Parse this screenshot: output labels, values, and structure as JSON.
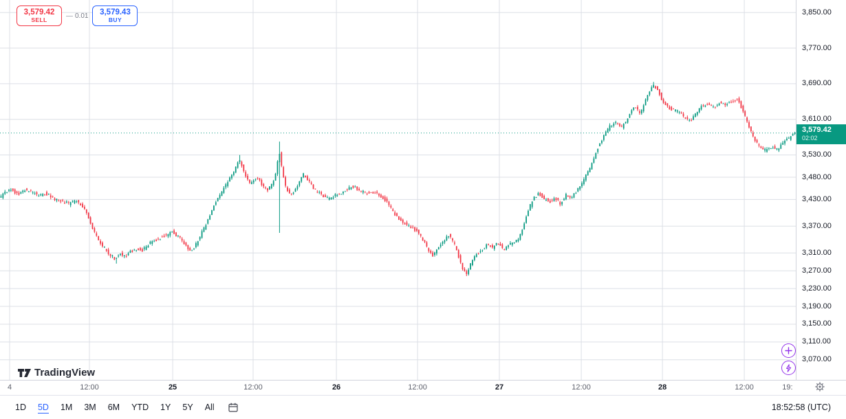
{
  "order_panel": {
    "sell": {
      "price": "3,579.42",
      "label": "SELL"
    },
    "spread": "0.01",
    "buy": {
      "price": "3,579.43",
      "label": "BUY"
    }
  },
  "current_price": {
    "value": 3579.42,
    "label": "3,579.42",
    "countdown": "02:02"
  },
  "logo": {
    "text": "TradingView"
  },
  "price_axis": {
    "labels": [
      {
        "label": "3,850.00",
        "value": 3850
      },
      {
        "label": "3,770.00",
        "value": 3770
      },
      {
        "label": "3,690.00",
        "value": 3690
      },
      {
        "label": "3,610.00",
        "value": 3610
      },
      {
        "label": "3,530.00",
        "value": 3530
      },
      {
        "label": "3,480.00",
        "value": 3480
      },
      {
        "label": "3,430.00",
        "value": 3430
      },
      {
        "label": "3,370.00",
        "value": 3370
      },
      {
        "label": "3,310.00",
        "value": 3310
      },
      {
        "label": "3,270.00",
        "value": 3270
      },
      {
        "label": "3,230.00",
        "value": 3230
      },
      {
        "label": "3,190.00",
        "value": 3190
      },
      {
        "label": "3,150.00",
        "value": 3150
      },
      {
        "label": "3,110.00",
        "value": 3110
      },
      {
        "label": "3,070.00",
        "value": 3070
      }
    ]
  },
  "time_axis": {
    "ticks": [
      {
        "label": "4",
        "t": 0.0121,
        "bold": false,
        "grid": true
      },
      {
        "label": "12:00",
        "t": 0.1124,
        "bold": false,
        "grid": true
      },
      {
        "label": "25",
        "t": 0.217,
        "bold": true,
        "grid": true
      },
      {
        "label": "12:00",
        "t": 0.3181,
        "bold": false,
        "grid": true
      },
      {
        "label": "26",
        "t": 0.4227,
        "bold": true,
        "grid": true
      },
      {
        "label": "12:00",
        "t": 0.5247,
        "bold": false,
        "grid": true
      },
      {
        "label": "27",
        "t": 0.6275,
        "bold": true,
        "grid": true
      },
      {
        "label": "12:00",
        "t": 0.7304,
        "bold": false,
        "grid": true
      },
      {
        "label": "28",
        "t": 0.8324,
        "bold": true,
        "grid": true
      },
      {
        "label": "12:00",
        "t": 0.9353,
        "bold": false,
        "grid": true
      },
      {
        "label": "19:",
        "t": 0.9896,
        "bold": false,
        "grid": false
      }
    ]
  },
  "toolbar": {
    "ranges": [
      {
        "label": "1D",
        "active": false
      },
      {
        "label": "5D",
        "active": true
      },
      {
        "label": "1M",
        "active": false
      },
      {
        "label": "3M",
        "active": false
      },
      {
        "label": "6M",
        "active": false
      },
      {
        "label": "YTD",
        "active": false
      },
      {
        "label": "1Y",
        "active": false
      },
      {
        "label": "5Y",
        "active": false
      },
      {
        "label": "All",
        "active": false
      }
    ],
    "clock": "18:52:58 (UTC)"
  },
  "icons": {
    "side_buttons": [
      "plus-circle-icon",
      "lightning-circle-icon"
    ],
    "axis_corner": "gear-icon",
    "toolbar": "calendar-go-to-date-icon"
  },
  "colors": {
    "up": "#089981",
    "down": "#f23645",
    "buy_blue": "#2962ff",
    "sell_red": "#f23645",
    "grid": "#dcdfe6",
    "axis_text": "#131722",
    "muted_text": "#787b86",
    "accent_purple": "#9333ea",
    "badge_bg": "#089981"
  },
  "chart_data": {
    "type": "candlestick",
    "timeframe_view": "5D",
    "last_price": 3579.42,
    "y_range": [
      3025,
      3878
    ],
    "num_candles": 400,
    "x_axis_labels": [
      "4",
      "12:00",
      "25",
      "12:00",
      "26",
      "12:00",
      "27",
      "12:00",
      "28",
      "12:00",
      "19:"
    ],
    "y_axis_labels": [
      "3,850.00",
      "3,770.00",
      "3,690.00",
      "3,610.00",
      "3,530.00",
      "3,480.00",
      "3,430.00",
      "3,370.00",
      "3,310.00",
      "3,270.00",
      "3,230.00",
      "3,190.00",
      "3,150.00",
      "3,110.00",
      "3,070.00"
    ],
    "colors": {
      "up": "#089981",
      "down": "#f23645"
    },
    "price_path": [
      [
        0.0,
        3432
      ],
      [
        0.008,
        3446
      ],
      [
        0.016,
        3452
      ],
      [
        0.024,
        3440
      ],
      [
        0.032,
        3452
      ],
      [
        0.04,
        3448
      ],
      [
        0.05,
        3438
      ],
      [
        0.058,
        3445
      ],
      [
        0.068,
        3432
      ],
      [
        0.078,
        3428
      ],
      [
        0.088,
        3420
      ],
      [
        0.096,
        3428
      ],
      [
        0.104,
        3418
      ],
      [
        0.11,
        3400
      ],
      [
        0.116,
        3372
      ],
      [
        0.122,
        3348
      ],
      [
        0.128,
        3332
      ],
      [
        0.134,
        3316
      ],
      [
        0.14,
        3305
      ],
      [
        0.146,
        3296
      ],
      [
        0.152,
        3310
      ],
      [
        0.158,
        3300
      ],
      [
        0.164,
        3312
      ],
      [
        0.172,
        3320
      ],
      [
        0.18,
        3316
      ],
      [
        0.188,
        3330
      ],
      [
        0.196,
        3338
      ],
      [
        0.204,
        3345
      ],
      [
        0.212,
        3352
      ],
      [
        0.218,
        3358
      ],
      [
        0.224,
        3348
      ],
      [
        0.23,
        3338
      ],
      [
        0.236,
        3322
      ],
      [
        0.242,
        3315
      ],
      [
        0.248,
        3330
      ],
      [
        0.254,
        3352
      ],
      [
        0.26,
        3375
      ],
      [
        0.267,
        3405
      ],
      [
        0.274,
        3432
      ],
      [
        0.281,
        3450
      ],
      [
        0.288,
        3472
      ],
      [
        0.295,
        3492
      ],
      [
        0.302,
        3520
      ],
      [
        0.309,
        3488
      ],
      [
        0.316,
        3462
      ],
      [
        0.323,
        3480
      ],
      [
        0.33,
        3465
      ],
      [
        0.337,
        3448
      ],
      [
        0.344,
        3468
      ],
      [
        0.349,
        3500
      ],
      [
        0.352,
        3540
      ],
      [
        0.356,
        3492
      ],
      [
        0.361,
        3452
      ],
      [
        0.368,
        3442
      ],
      [
        0.375,
        3462
      ],
      [
        0.382,
        3488
      ],
      [
        0.389,
        3472
      ],
      [
        0.396,
        3452
      ],
      [
        0.404,
        3444
      ],
      [
        0.412,
        3432
      ],
      [
        0.42,
        3436
      ],
      [
        0.428,
        3443
      ],
      [
        0.436,
        3452
      ],
      [
        0.444,
        3460
      ],
      [
        0.452,
        3452
      ],
      [
        0.46,
        3444
      ],
      [
        0.468,
        3448
      ],
      [
        0.476,
        3442
      ],
      [
        0.484,
        3432
      ],
      [
        0.492,
        3410
      ],
      [
        0.5,
        3392
      ],
      [
        0.508,
        3378
      ],
      [
        0.516,
        3368
      ],
      [
        0.525,
        3360
      ],
      [
        0.532,
        3342
      ],
      [
        0.538,
        3322
      ],
      [
        0.545,
        3305
      ],
      [
        0.552,
        3320
      ],
      [
        0.558,
        3338
      ],
      [
        0.565,
        3350
      ],
      [
        0.572,
        3330
      ],
      [
        0.578,
        3300
      ],
      [
        0.583,
        3272
      ],
      [
        0.588,
        3265
      ],
      [
        0.594,
        3290
      ],
      [
        0.6,
        3308
      ],
      [
        0.607,
        3318
      ],
      [
        0.614,
        3330
      ],
      [
        0.62,
        3322
      ],
      [
        0.627,
        3332
      ],
      [
        0.634,
        3318
      ],
      [
        0.64,
        3328
      ],
      [
        0.646,
        3335
      ],
      [
        0.652,
        3340
      ],
      [
        0.658,
        3365
      ],
      [
        0.664,
        3400
      ],
      [
        0.67,
        3428
      ],
      [
        0.678,
        3445
      ],
      [
        0.684,
        3432
      ],
      [
        0.692,
        3425
      ],
      [
        0.7,
        3432
      ],
      [
        0.706,
        3420
      ],
      [
        0.712,
        3440
      ],
      [
        0.718,
        3432
      ],
      [
        0.724,
        3445
      ],
      [
        0.73,
        3458
      ],
      [
        0.737,
        3482
      ],
      [
        0.744,
        3505
      ],
      [
        0.752,
        3545
      ],
      [
        0.76,
        3575
      ],
      [
        0.768,
        3595
      ],
      [
        0.775,
        3605
      ],
      [
        0.782,
        3590
      ],
      [
        0.79,
        3612
      ],
      [
        0.798,
        3638
      ],
      [
        0.806,
        3625
      ],
      [
        0.814,
        3660
      ],
      [
        0.822,
        3688
      ],
      [
        0.827,
        3678
      ],
      [
        0.833,
        3655
      ],
      [
        0.84,
        3638
      ],
      [
        0.848,
        3630
      ],
      [
        0.856,
        3628
      ],
      [
        0.862,
        3612
      ],
      [
        0.868,
        3605
      ],
      [
        0.875,
        3622
      ],
      [
        0.882,
        3638
      ],
      [
        0.89,
        3645
      ],
      [
        0.898,
        3635
      ],
      [
        0.905,
        3648
      ],
      [
        0.912,
        3640
      ],
      [
        0.92,
        3650
      ],
      [
        0.928,
        3655
      ],
      [
        0.934,
        3632
      ],
      [
        0.94,
        3605
      ],
      [
        0.947,
        3572
      ],
      [
        0.954,
        3550
      ],
      [
        0.962,
        3540
      ],
      [
        0.97,
        3548
      ],
      [
        0.978,
        3542
      ],
      [
        0.985,
        3558
      ],
      [
        0.993,
        3568
      ],
      [
        1.0,
        3579.42
      ]
    ],
    "wick_events": [
      {
        "t": 0.146,
        "low": 3286
      },
      {
        "t": 0.302,
        "high": 3530
      },
      {
        "t": 0.352,
        "low": 3355,
        "high": 3560
      },
      {
        "t": 0.586,
        "low": 3258
      },
      {
        "t": 0.822,
        "high": 3694
      }
    ]
  }
}
